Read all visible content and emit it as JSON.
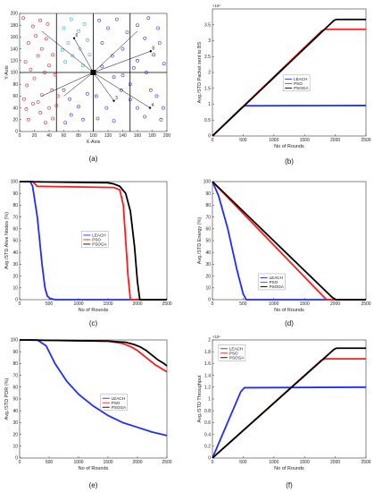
{
  "colors": {
    "leach": "#1f2bff",
    "pso": "#ff1a1a",
    "psoga": "#000000",
    "clusterA": "#c01a2a",
    "clusterB": "#1fa0d0",
    "clusterC": "#2a1fd0"
  },
  "chart_data": [
    {
      "id": "a",
      "type": "scatter",
      "caption": "(a)",
      "xlabel": "X-Axis",
      "ylabel": "Y-Axis",
      "xlim": [
        0,
        200
      ],
      "ylim": [
        0,
        200
      ],
      "xticks": [
        "0",
        "20",
        "40",
        "60",
        "80",
        "100",
        "120",
        "140",
        "160",
        "180",
        "200"
      ],
      "yticks": [
        "0",
        "20",
        "40",
        "60",
        "80",
        "100",
        "120",
        "140",
        "160",
        "180",
        "200"
      ],
      "grid": false,
      "base_station": [
        100,
        100
      ],
      "vertical_lines": [
        50,
        100,
        150
      ],
      "horizontal_lines": [
        100
      ],
      "cluster_labels": [
        {
          "text": "6",
          "x": 74,
          "y": 158
        },
        {
          "text": "8",
          "x": 178,
          "y": 136
        },
        {
          "text": "3",
          "x": 128,
          "y": 52
        },
        {
          "text": "4",
          "x": 177,
          "y": 40
        }
      ],
      "series": [
        {
          "color_key": "clusterA",
          "points": [
            [
              5,
              192
            ],
            [
              18,
              178
            ],
            [
              28,
              188
            ],
            [
              38,
              182
            ],
            [
              22,
              162
            ],
            [
              36,
              157
            ],
            [
              12,
              150
            ],
            [
              30,
              140
            ],
            [
              45,
              130
            ],
            [
              25,
              128
            ],
            [
              8,
              118
            ],
            [
              40,
              112
            ],
            [
              15,
              105
            ],
            [
              34,
              100
            ],
            [
              48,
              96
            ],
            [
              20,
              90
            ],
            [
              10,
              78
            ],
            [
              44,
              70
            ],
            [
              30,
              62
            ],
            [
              6,
              55
            ],
            [
              18,
              47
            ],
            [
              40,
              40
            ],
            [
              50,
              44
            ],
            [
              9,
              38
            ],
            [
              28,
              32
            ],
            [
              45,
              22
            ],
            [
              12,
              20
            ],
            [
              35,
              15
            ],
            [
              52,
              60
            ],
            [
              25,
              50
            ]
          ]
        },
        {
          "color_key": "clusterB",
          "points": [
            [
              60,
              175
            ],
            [
              70,
              190
            ],
            [
              80,
              170
            ],
            [
              88,
              182
            ],
            [
              66,
              150
            ],
            [
              82,
              140
            ],
            [
              92,
              155
            ],
            [
              72,
              128
            ],
            [
              62,
              118
            ],
            [
              86,
              112
            ],
            [
              95,
              130
            ],
            [
              58,
              138
            ]
          ]
        },
        {
          "color_key": "clusterC",
          "points": [
            [
              108,
              188
            ],
            [
              120,
              175
            ],
            [
              132,
              190
            ],
            [
              146,
              168
            ],
            [
              112,
              150
            ],
            [
              140,
              140
            ],
            [
              126,
              128
            ],
            [
              160,
              180
            ],
            [
              175,
              192
            ],
            [
              188,
              175
            ],
            [
              170,
              158
            ],
            [
              190,
              150
            ],
            [
              182,
              130
            ],
            [
              160,
              120
            ],
            [
              196,
              115
            ],
            [
              155,
              108
            ],
            [
              172,
              100
            ],
            [
              112,
              110
            ],
            [
              140,
              95
            ],
            [
              60,
              70
            ],
            [
              68,
              55
            ],
            [
              80,
              42
            ],
            [
              70,
              28
            ],
            [
              86,
              20
            ],
            [
              62,
              15
            ],
            [
              92,
              64
            ],
            [
              104,
              60
            ],
            [
              118,
              40
            ],
            [
              106,
              22
            ],
            [
              128,
              18
            ],
            [
              138,
              70
            ],
            [
              150,
              54
            ],
            [
              160,
              40
            ],
            [
              170,
              25
            ],
            [
              186,
              60
            ],
            [
              195,
              40
            ],
            [
              192,
              20
            ],
            [
              178,
              70
            ],
            [
              150,
              80
            ],
            [
              128,
              92
            ]
          ]
        }
      ]
    },
    {
      "id": "b",
      "type": "line",
      "caption": "(b)",
      "xlabel": "No of Rounds",
      "ylabel": "Avg./STD Packet sent to BS",
      "xlim": [
        0,
        2500
      ],
      "ylim": [
        0,
        4
      ],
      "multiplier": "×10⁸",
      "xticks": [
        "0",
        "500",
        "1000",
        "1500",
        "2000",
        "2500"
      ],
      "yticks": [
        "0",
        "0.5",
        "1",
        "1.5",
        "2",
        "2.5",
        "3",
        "3.5"
      ],
      "legend": [
        "LEACH",
        "PSO",
        "PSOGA"
      ],
      "legend_position": "center-right",
      "series": [
        {
          "name": "LEACH",
          "color_key": "leach",
          "x": [
            0,
            460,
            520,
            2500
          ],
          "y": [
            0,
            0.86,
            0.95,
            0.96
          ]
        },
        {
          "name": "PSO",
          "color_key": "pso",
          "x": [
            0,
            1780,
            1840,
            2500
          ],
          "y": [
            0,
            3.31,
            3.36,
            3.36
          ]
        },
        {
          "name": "PSOGA",
          "color_key": "psoga",
          "x": [
            0,
            1980,
            2020,
            2500
          ],
          "y": [
            0,
            3.64,
            3.67,
            3.67
          ]
        }
      ]
    },
    {
      "id": "c",
      "type": "line",
      "caption": "(c)",
      "xlabel": "No of Rounds",
      "ylabel": "Avg./STD Alive Nodes (%)",
      "xlim": [
        0,
        2500
      ],
      "ylim": [
        0,
        100
      ],
      "xticks": [
        "0",
        "500",
        "1000",
        "1500",
        "2000",
        "2500"
      ],
      "yticks": [
        "0",
        "10",
        "20",
        "30",
        "40",
        "50",
        "60",
        "70",
        "80",
        "90",
        "100"
      ],
      "legend": [
        "LEACH",
        "PSO",
        "PSOGA"
      ],
      "legend_position": "center",
      "series": [
        {
          "name": "LEACH",
          "color_key": "leach",
          "x": [
            0,
            180,
            220,
            300,
            380,
            430,
            470,
            520,
            600,
            2500
          ],
          "y": [
            100,
            100,
            96,
            70,
            30,
            10,
            3,
            1,
            0,
            0
          ]
        },
        {
          "name": "PSO",
          "color_key": "pso",
          "x": [
            0,
            220,
            300,
            1600,
            1700,
            1760,
            1800,
            1840,
            1880,
            2500
          ],
          "y": [
            100,
            100,
            96,
            95,
            93,
            80,
            50,
            20,
            0,
            0
          ]
        },
        {
          "name": "PSOGA",
          "color_key": "psoga",
          "x": [
            0,
            1500,
            1600,
            1700,
            1800,
            1880,
            1950,
            2000,
            2040,
            2500
          ],
          "y": [
            100,
            99,
            98,
            96,
            90,
            75,
            45,
            15,
            0,
            0
          ]
        }
      ]
    },
    {
      "id": "d",
      "type": "line",
      "caption": "(d)",
      "xlabel": "No of Rounds",
      "ylabel": "Avg./STD Energy (%)",
      "xlim": [
        0,
        2500
      ],
      "ylim": [
        0,
        100
      ],
      "xticks": [
        "0",
        "500",
        "1000",
        "1500",
        "2000",
        "2500"
      ],
      "yticks": [
        "0",
        "10",
        "20",
        "30",
        "40",
        "50",
        "60",
        "70",
        "80",
        "90",
        "100"
      ],
      "legend": [
        "LEACH",
        "PSO",
        "PSOGA"
      ],
      "legend_position": "bottom-center",
      "series": [
        {
          "name": "LEACH",
          "color_key": "leach",
          "x": [
            0,
            100,
            250,
            400,
            500,
            550,
            2500
          ],
          "y": [
            100,
            88,
            60,
            25,
            5,
            0,
            0
          ]
        },
        {
          "name": "PSO",
          "color_key": "pso",
          "x": [
            0,
            1800,
            1860,
            2500
          ],
          "y": [
            100,
            3,
            0,
            0
          ]
        },
        {
          "name": "PSOGA",
          "color_key": "psoga",
          "x": [
            0,
            1950,
            2010,
            2500
          ],
          "y": [
            100,
            2,
            0,
            0
          ]
        }
      ]
    },
    {
      "id": "e",
      "type": "line",
      "caption": "(e)",
      "xlabel": "No of Rounds",
      "ylabel": "Avg./STD PDR (%)",
      "xlim": [
        0,
        2500
      ],
      "ylim": [
        0,
        100
      ],
      "xticks": [
        "0",
        "500",
        "1000",
        "1500",
        "2000",
        "2500"
      ],
      "yticks": [
        "0",
        "10",
        "20",
        "30",
        "40",
        "50",
        "60",
        "70",
        "80",
        "90",
        "100"
      ],
      "legend": [
        "LEACH",
        "PSO",
        "PSOGA"
      ],
      "legend_position": "right-center",
      "series": [
        {
          "name": "LEACH",
          "color_key": "leach",
          "x": [
            0,
            300,
            450,
            600,
            800,
            1000,
            1250,
            1500,
            1750,
            2000,
            2250,
            2500
          ],
          "y": [
            100,
            100,
            95,
            80,
            65,
            54,
            44,
            36,
            30,
            26,
            22,
            19
          ]
        },
        {
          "name": "PSO",
          "color_key": "pso",
          "x": [
            0,
            1500,
            1750,
            1900,
            2000,
            2100,
            2200,
            2300,
            2400,
            2500
          ],
          "y": [
            100,
            99,
            97,
            94,
            91,
            87,
            83,
            79,
            76,
            73
          ]
        },
        {
          "name": "PSOGA",
          "color_key": "psoga",
          "x": [
            0,
            1500,
            1800,
            1950,
            2050,
            2150,
            2250,
            2350,
            2450,
            2500
          ],
          "y": [
            100,
            99,
            98,
            96,
            94,
            91,
            87,
            83,
            80,
            78
          ]
        }
      ]
    },
    {
      "id": "f",
      "type": "line",
      "caption": "(f)",
      "xlabel": "No of Rounds",
      "ylabel": "Avg./STD Throughput",
      "xlim": [
        0,
        2500
      ],
      "ylim": [
        0,
        2
      ],
      "multiplier": "×10⁴",
      "xticks": [
        "0",
        "500",
        "1000",
        "1500",
        "2000",
        "2500"
      ],
      "yticks": [
        "0",
        "0.2",
        "0.4",
        "0.6",
        "0.8",
        "1",
        "1.2",
        "1.4",
        "1.6",
        "1.8",
        "2"
      ],
      "legend": [
        "LEACH",
        "PSO",
        "PSOGA"
      ],
      "legend_position": "top-left",
      "series": [
        {
          "name": "LEACH",
          "color_key": "leach",
          "x": [
            0,
            460,
            520,
            2500
          ],
          "y": [
            0,
            1.12,
            1.19,
            1.2
          ]
        },
        {
          "name": "PSO",
          "color_key": "pso",
          "x": [
            0,
            1780,
            1840,
            2500
          ],
          "y": [
            0,
            1.66,
            1.68,
            1.68
          ]
        },
        {
          "name": "PSOGA",
          "color_key": "psoga",
          "x": [
            0,
            1980,
            2020,
            2500
          ],
          "y": [
            0,
            1.84,
            1.86,
            1.86
          ]
        }
      ]
    }
  ]
}
